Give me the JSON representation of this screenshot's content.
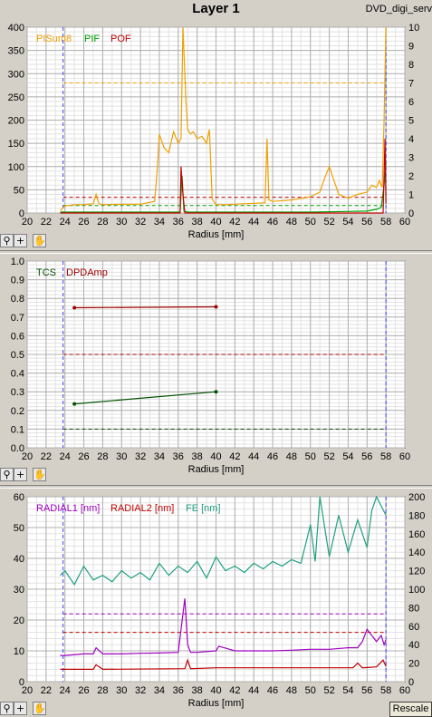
{
  "window": {
    "title": "Layer 1",
    "file_name": "DVD_digi_serv"
  },
  "toolbar": {
    "zoom_icon": "zoom-icon",
    "add_icon": "plus-icon",
    "pan_icon": "hand-icon"
  },
  "rescale_label": "Rescale",
  "chart_data": [
    {
      "type": "line",
      "xlabel": "Radius [mm]",
      "xlim": [
        20,
        60
      ],
      "x_ticks": [
        "20",
        "22",
        "24",
        "26",
        "28",
        "30",
        "32",
        "34",
        "36",
        "38",
        "40",
        "42",
        "44",
        "46",
        "48",
        "50",
        "52",
        "54",
        "56",
        "58",
        "60"
      ],
      "ylim": [
        0,
        400
      ],
      "y_ticks": [
        "0",
        "50",
        "100",
        "150",
        "200",
        "250",
        "300",
        "350",
        "400"
      ],
      "y2lim": [
        0,
        10
      ],
      "y2_ticks": [
        "0",
        "1",
        "2",
        "3",
        "4",
        "5",
        "6",
        "7",
        "8",
        "9",
        "10"
      ],
      "grid": true,
      "legend_position": "top-left",
      "series": [
        {
          "name": "PISum8",
          "color": "#f0a000",
          "axis": "left",
          "x": [
            23.5,
            24,
            25,
            26,
            27,
            27.3,
            27.6,
            28,
            30,
            32,
            33.5,
            33.8,
            34,
            34.5,
            35,
            35.5,
            36,
            36.3,
            36.5,
            36.8,
            37,
            37.3,
            37.6,
            38,
            38.5,
            39,
            39.3,
            39.6,
            40,
            41,
            43,
            45.2,
            45.4,
            45.6,
            46,
            48,
            50,
            51,
            51.5,
            52,
            52.5,
            53,
            54,
            55,
            56,
            56.5,
            57,
            57.3,
            57.6,
            57.8,
            58
          ],
          "y": [
            5,
            15,
            18,
            18,
            20,
            40,
            20,
            18,
            19,
            19,
            25,
            100,
            170,
            140,
            130,
            175,
            150,
            160,
            400,
            250,
            180,
            170,
            175,
            160,
            165,
            150,
            180,
            30,
            18,
            18,
            20,
            22,
            160,
            28,
            25,
            28,
            35,
            45,
            75,
            100,
            70,
            40,
            32,
            40,
            45,
            60,
            55,
            70,
            55,
            200,
            400
          ]
        },
        {
          "name": "PIF",
          "color": "#00a000",
          "axis": "right",
          "x": [
            23.5,
            30,
            36.2,
            36.4,
            36.6,
            37,
            45,
            50,
            56,
            57,
            57.5,
            57.8,
            58
          ],
          "y": [
            0.05,
            0.05,
            0.05,
            2.0,
            0.1,
            0.05,
            0.05,
            0.05,
            0.1,
            0.2,
            0.3,
            1.5,
            2.7
          ]
        },
        {
          "name": "POF",
          "color": "#c00000",
          "axis": "right",
          "x": [
            23.5,
            36.2,
            36.3,
            36.5,
            36.7,
            57.7,
            57.9,
            58
          ],
          "y": [
            0,
            0,
            2.5,
            1.0,
            0,
            0,
            4.0,
            0.5
          ]
        }
      ],
      "threshold_lines": [
        {
          "y": 280,
          "axis": "left",
          "color": "#f0a000"
        },
        {
          "y": 0.85,
          "axis": "right",
          "color": "#c00000"
        },
        {
          "y": 0.4,
          "axis": "right",
          "color": "#00a000"
        }
      ],
      "vertical_markers": [
        {
          "x": 23.8,
          "color": "#4040ff"
        },
        {
          "x": 58.0,
          "color": "#4040ff"
        }
      ]
    },
    {
      "type": "line",
      "xlabel": "Radius [mm]",
      "xlim": [
        20,
        60
      ],
      "x_ticks": [
        "20",
        "22",
        "24",
        "26",
        "28",
        "30",
        "32",
        "34",
        "36",
        "38",
        "40",
        "42",
        "44",
        "46",
        "48",
        "50",
        "52",
        "54",
        "56",
        "58",
        "60"
      ],
      "ylim": [
        0,
        1
      ],
      "y_ticks": [
        "0.0",
        "0.1",
        "0.2",
        "0.3",
        "0.4",
        "0.5",
        "0.6",
        "0.7",
        "0.8",
        "0.9",
        "1.0"
      ],
      "grid": true,
      "legend_position": "top-left",
      "series": [
        {
          "name": "TCS",
          "color": "#005000",
          "x": [
            25,
            40
          ],
          "y": [
            0.235,
            0.3
          ]
        },
        {
          "name": "DPDAmp",
          "color": "#a00000",
          "x": [
            25,
            40
          ],
          "y": [
            0.75,
            0.755
          ]
        }
      ],
      "threshold_lines": [
        {
          "y": 0.5,
          "color": "#a00000"
        },
        {
          "y": 0.1,
          "color": "#005000"
        }
      ],
      "vertical_markers": [
        {
          "x": 23.8,
          "color": "#4040ff"
        },
        {
          "x": 58.0,
          "color": "#4040ff"
        }
      ]
    },
    {
      "type": "line",
      "xlabel": "Radius [mm]",
      "xlim": [
        20,
        60
      ],
      "x_ticks": [
        "20",
        "22",
        "24",
        "26",
        "28",
        "30",
        "32",
        "34",
        "36",
        "38",
        "40",
        "42",
        "44",
        "46",
        "48",
        "50",
        "52",
        "54",
        "56",
        "58",
        "60"
      ],
      "ylim": [
        0,
        60
      ],
      "y_ticks": [
        "0",
        "10",
        "20",
        "30",
        "40",
        "50",
        "60"
      ],
      "y2lim": [
        0,
        200
      ],
      "y2_ticks": [
        "0",
        "20",
        "40",
        "60",
        "80",
        "100",
        "120",
        "140",
        "160",
        "180",
        "200"
      ],
      "grid": true,
      "legend_position": "top-left",
      "series": [
        {
          "name": "RADIAL1 [nm]",
          "color": "#a000c0",
          "axis": "left",
          "x": [
            23.5,
            24,
            26,
            27,
            27.3,
            28,
            30,
            32,
            34,
            36,
            36.7,
            37,
            37.3,
            38,
            40,
            40.3,
            42,
            44,
            46,
            48,
            50,
            52,
            54,
            55,
            55.5,
            56,
            57,
            57.5,
            57.8,
            58
          ],
          "y": [
            8.5,
            8.5,
            9,
            9,
            11,
            9,
            9,
            9.2,
            9.3,
            9.5,
            27,
            12,
            9.5,
            9.5,
            10,
            11.5,
            10,
            10,
            10,
            10.2,
            10.5,
            10.5,
            11,
            11,
            13,
            17,
            13,
            15,
            12,
            13.5
          ]
        },
        {
          "name": "RADIAL2 [nm]",
          "color": "#c00000",
          "axis": "left",
          "x": [
            23.5,
            27,
            27.3,
            28,
            36.7,
            37,
            37.3,
            40,
            54.5,
            55,
            55.5,
            57,
            57.7,
            58
          ],
          "y": [
            4,
            4,
            5.5,
            4,
            4.2,
            7,
            4.2,
            4.5,
            4.5,
            6,
            4.5,
            4.8,
            7,
            5
          ]
        },
        {
          "name": "FE [nm]",
          "color": "#20a080",
          "axis": "right",
          "x": [
            23.5,
            24,
            25,
            26,
            27,
            28,
            29,
            30,
            31,
            32,
            33,
            34,
            35,
            36,
            37,
            38,
            39,
            40,
            41,
            42,
            43,
            44,
            45,
            46,
            47,
            48,
            49,
            50,
            50.5,
            51,
            52,
            53,
            54,
            55,
            56,
            56.5,
            57,
            57.5,
            58
          ],
          "y": [
            115,
            120,
            105,
            125,
            110,
            115,
            108,
            120,
            112,
            118,
            110,
            128,
            115,
            125,
            118,
            130,
            112,
            135,
            120,
            125,
            118,
            128,
            122,
            130,
            125,
            132,
            128,
            170,
            130,
            200,
            135,
            180,
            140,
            175,
            145,
            185,
            200,
            190,
            180
          ]
        }
      ],
      "threshold_lines": [
        {
          "y": 22,
          "axis": "left",
          "color": "#a000c0"
        },
        {
          "y": 16,
          "axis": "left",
          "color": "#c00000"
        }
      ],
      "vertical_markers": [
        {
          "x": 23.8,
          "color": "#4040ff"
        },
        {
          "x": 58.0,
          "color": "#4040ff"
        }
      ]
    }
  ]
}
